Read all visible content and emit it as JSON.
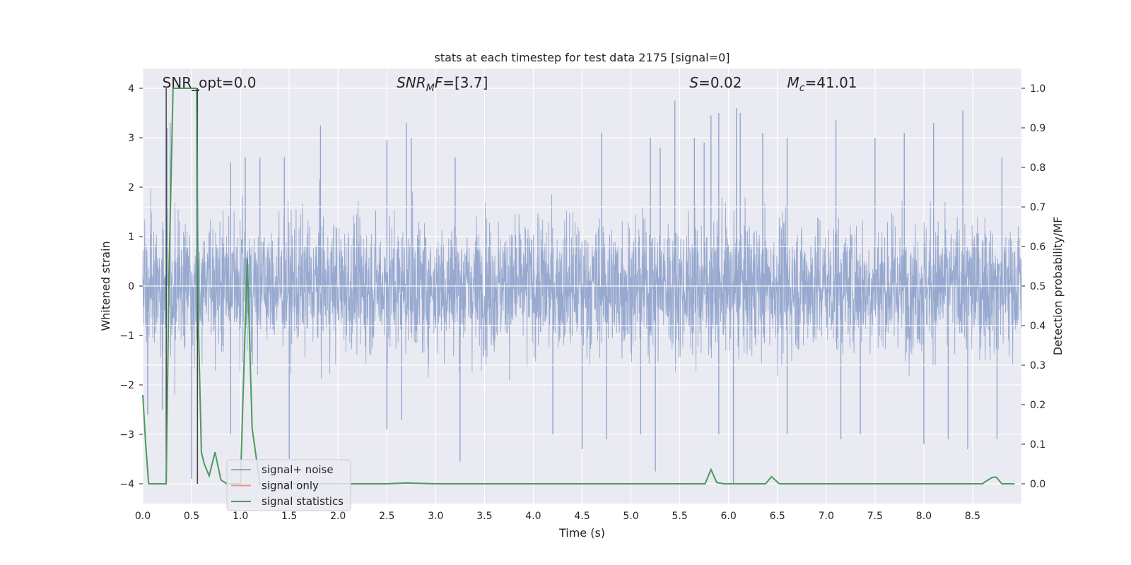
{
  "chart_data": {
    "type": "line",
    "title": "stats at each timestep for test data 2175 [signal=0]",
    "xlabel": "Time (s)",
    "ylabel_left": "Whitened strain",
    "ylabel_right": "Detection probability/MF",
    "xlim": [
      0.0,
      9.0
    ],
    "ylim_left": [
      -4.4,
      4.4
    ],
    "ylim_right": [
      -0.05,
      1.05
    ],
    "xticks": [
      0.0,
      0.5,
      1.0,
      1.5,
      2.0,
      2.5,
      3.0,
      3.5,
      4.0,
      4.5,
      5.0,
      5.5,
      6.0,
      6.5,
      7.0,
      7.5,
      8.0,
      8.5
    ],
    "xtick_labels": [
      "0.0",
      "0.5",
      "1.0",
      "1.5",
      "2.0",
      "2.5",
      "3.0",
      "3.5",
      "4.0",
      "4.5",
      "5.0",
      "5.5",
      "6.0",
      "6.5",
      "7.0",
      "7.5",
      "8.0",
      "8.5"
    ],
    "yticks_left": [
      -4,
      -3,
      -2,
      -1,
      0,
      1,
      2,
      3,
      4
    ],
    "ytick_labels_left": [
      "−4",
      "−3",
      "−2",
      "−1",
      "0",
      "1",
      "2",
      "3",
      "4"
    ],
    "yticks_right": [
      0.0,
      0.1,
      0.2,
      0.3,
      0.4,
      0.5,
      0.6,
      0.7,
      0.8,
      0.9,
      1.0
    ],
    "ytick_labels_right": [
      "0.0",
      "0.1",
      "0.2",
      "0.3",
      "0.4",
      "0.5",
      "0.6",
      "0.7",
      "0.8",
      "0.9",
      "1.0"
    ],
    "grid": true,
    "legend_placement": "lower-left",
    "annotations": [
      {
        "text_plain": "SNR_opt=0.0",
        "x": 0.2
      },
      {
        "text_plain": "SNR",
        "sub": "M",
        "rest": "F=[3.7]",
        "x": 2.6
      },
      {
        "text_plain": "S",
        "rest": "=0.02",
        "x": 5.6
      },
      {
        "text_plain": "M",
        "sub": "c",
        "rest": "=41.01",
        "x": 6.6
      }
    ],
    "series": [
      {
        "name": "signal+ noise",
        "axis": "left",
        "color": "#92a5cc",
        "description_kind": "dense_noise",
        "x_range": [
          0.0,
          9.0
        ],
        "band_core": [
          -1.6,
          1.6
        ],
        "peaks": [
          [
            0.25,
            3.2
          ],
          [
            0.28,
            3.3
          ],
          [
            0.55,
            3.25
          ],
          [
            0.9,
            2.5
          ],
          [
            1.05,
            2.6
          ],
          [
            1.2,
            2.6
          ],
          [
            1.45,
            2.6
          ],
          [
            1.82,
            3.25
          ],
          [
            2.5,
            2.95
          ],
          [
            2.7,
            3.3
          ],
          [
            2.75,
            3.0
          ],
          [
            3.2,
            2.6
          ],
          [
            4.7,
            3.1
          ],
          [
            5.2,
            3.0
          ],
          [
            5.3,
            2.8
          ],
          [
            5.45,
            3.75
          ],
          [
            5.65,
            3.0
          ],
          [
            5.75,
            2.9
          ],
          [
            5.82,
            3.45
          ],
          [
            5.9,
            3.5
          ],
          [
            6.08,
            3.6
          ],
          [
            6.12,
            3.5
          ],
          [
            6.35,
            3.1
          ],
          [
            6.6,
            3.0
          ],
          [
            7.1,
            3.35
          ],
          [
            7.5,
            3.0
          ],
          [
            7.8,
            3.1
          ],
          [
            8.1,
            3.3
          ],
          [
            8.4,
            3.55
          ],
          [
            8.8,
            2.6
          ]
        ],
        "troughs": [
          [
            0.05,
            -2.6
          ],
          [
            0.2,
            -2.5
          ],
          [
            0.5,
            -3.9
          ],
          [
            0.9,
            -3.0
          ],
          [
            1.5,
            -3.5
          ],
          [
            2.5,
            -2.9
          ],
          [
            2.65,
            -2.7
          ],
          [
            3.25,
            -3.55
          ],
          [
            4.2,
            -3.0
          ],
          [
            4.5,
            -3.3
          ],
          [
            4.75,
            -3.1
          ],
          [
            5.1,
            -3.0
          ],
          [
            5.25,
            -3.75
          ],
          [
            5.9,
            -3.0
          ],
          [
            6.05,
            -4.0
          ],
          [
            6.6,
            -3.0
          ],
          [
            7.15,
            -3.1
          ],
          [
            7.35,
            -3.0
          ],
          [
            8.0,
            -3.2
          ],
          [
            8.25,
            -3.1
          ],
          [
            8.45,
            -3.3
          ],
          [
            8.75,
            -3.1
          ]
        ]
      },
      {
        "name": "signal only",
        "axis": "left",
        "color": "#e59b7f",
        "x": [
          0.0,
          9.0
        ],
        "y": [
          0.0,
          0.0
        ]
      },
      {
        "name": "signal statistics",
        "axis": "right",
        "color": "#4c9a5a",
        "x": [
          0.0,
          0.03,
          0.06,
          0.1,
          0.2,
          0.24,
          0.27,
          0.31,
          0.35,
          0.5,
          0.55,
          0.57,
          0.6,
          0.63,
          0.68,
          0.74,
          0.8,
          0.86,
          0.95,
          1.0,
          1.07,
          1.12,
          1.2,
          1.3,
          2.5,
          2.7,
          3.0,
          5.7,
          5.76,
          5.82,
          5.88,
          5.95,
          6.3,
          6.38,
          6.44,
          6.52,
          6.6,
          8.6,
          8.64,
          8.7,
          8.74,
          8.8,
          8.93
        ],
        "y": [
          0.225,
          0.1,
          0.0,
          0.0,
          0.0,
          0.0,
          0.55,
          1.0,
          1.0,
          1.0,
          1.0,
          0.4,
          0.08,
          0.05,
          0.02,
          0.08,
          0.01,
          0.0,
          0.0,
          0.0,
          0.57,
          0.14,
          0.0,
          0.0,
          0.0,
          0.002,
          0.0,
          0.0,
          0.0,
          0.036,
          0.003,
          0.0,
          0.0,
          0.0,
          0.018,
          0.0,
          0.0,
          0.0,
          0.007,
          0.016,
          0.017,
          0.0,
          0.0
        ]
      }
    ],
    "vlines": [
      {
        "x": 0.24,
        "color": "#404040"
      },
      {
        "x": 0.56,
        "color": "#404040"
      }
    ]
  },
  "legend": {
    "items": [
      "signal+ noise",
      "signal only",
      "signal statistics"
    ]
  }
}
